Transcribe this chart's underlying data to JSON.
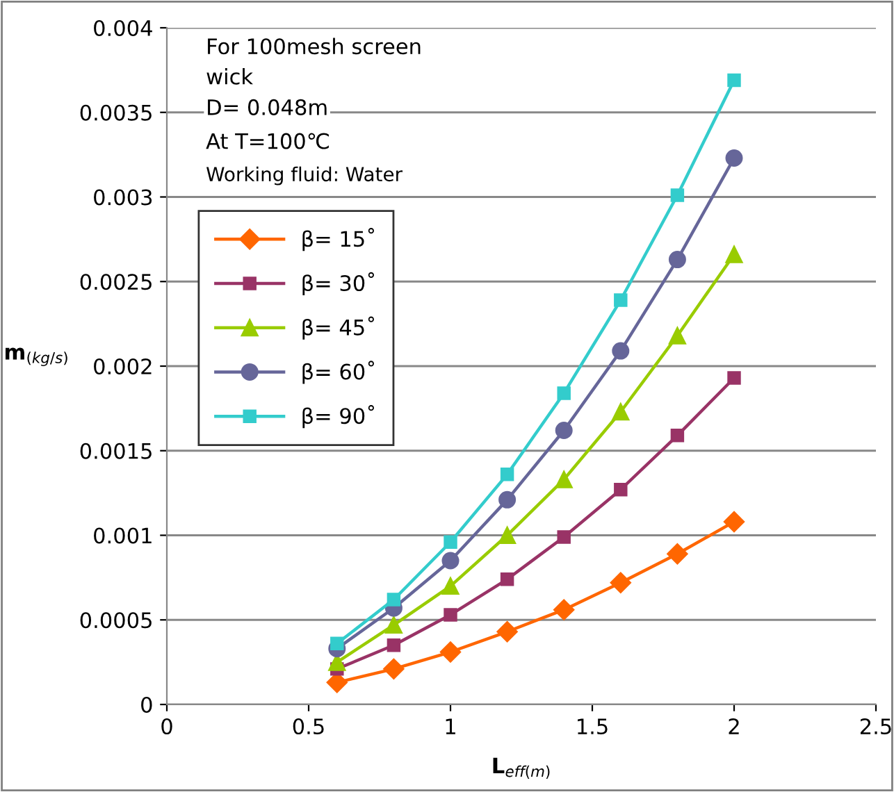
{
  "chart_data": {
    "type": "line",
    "xlabel": "L$_{eff(m)}$",
    "ylabel": "m$_{(kg/s)}$",
    "annotations": [
      "For 100mesh screen\nwick",
      "D= 0.048m",
      "At T=100℃",
      "Working fluid: Water"
    ],
    "x": [
      0.6,
      0.8,
      1.0,
      1.2,
      1.4,
      1.6,
      1.8,
      2.0
    ],
    "series": [
      {
        "name": "β= 15˚",
        "color": "#ff6600",
        "marker": "diamond",
        "values": [
          0.00013,
          0.00021,
          0.00031,
          0.00043,
          0.00056,
          0.00072,
          0.00089,
          0.00108
        ]
      },
      {
        "name": "β= 30˚",
        "color": "#993366",
        "marker": "square",
        "values": [
          0.00021,
          0.00035,
          0.00053,
          0.00074,
          0.00099,
          0.00127,
          0.00159,
          0.00193
        ]
      },
      {
        "name": "β= 45˚",
        "color": "#99cc00",
        "marker": "triangle",
        "values": [
          0.00025,
          0.00047,
          0.0007,
          0.001,
          0.00133,
          0.00173,
          0.00218,
          0.00266
        ]
      },
      {
        "name": "β= 60˚",
        "color": "#666699",
        "marker": "circle",
        "values": [
          0.00033,
          0.00057,
          0.00085,
          0.00121,
          0.00162,
          0.00209,
          0.00263,
          0.00323
        ]
      },
      {
        "name": "β= 90˚",
        "color": "#33cccc",
        "marker": "square",
        "values": [
          0.00036,
          0.00062,
          0.00096,
          0.00136,
          0.00184,
          0.00239,
          0.00301,
          0.00369
        ]
      }
    ],
    "xlim": [
      0,
      2.5
    ],
    "xticks": [
      0,
      0.5,
      1,
      1.5,
      2,
      2.5
    ],
    "ylim": [
      0,
      0.004
    ],
    "yticks": [
      0,
      0.0005,
      0.001,
      0.0015,
      0.002,
      0.0025,
      0.003,
      0.0035,
      0.004
    ],
    "grid": "y",
    "legend": "upper left",
    "line_style": "solid"
  }
}
